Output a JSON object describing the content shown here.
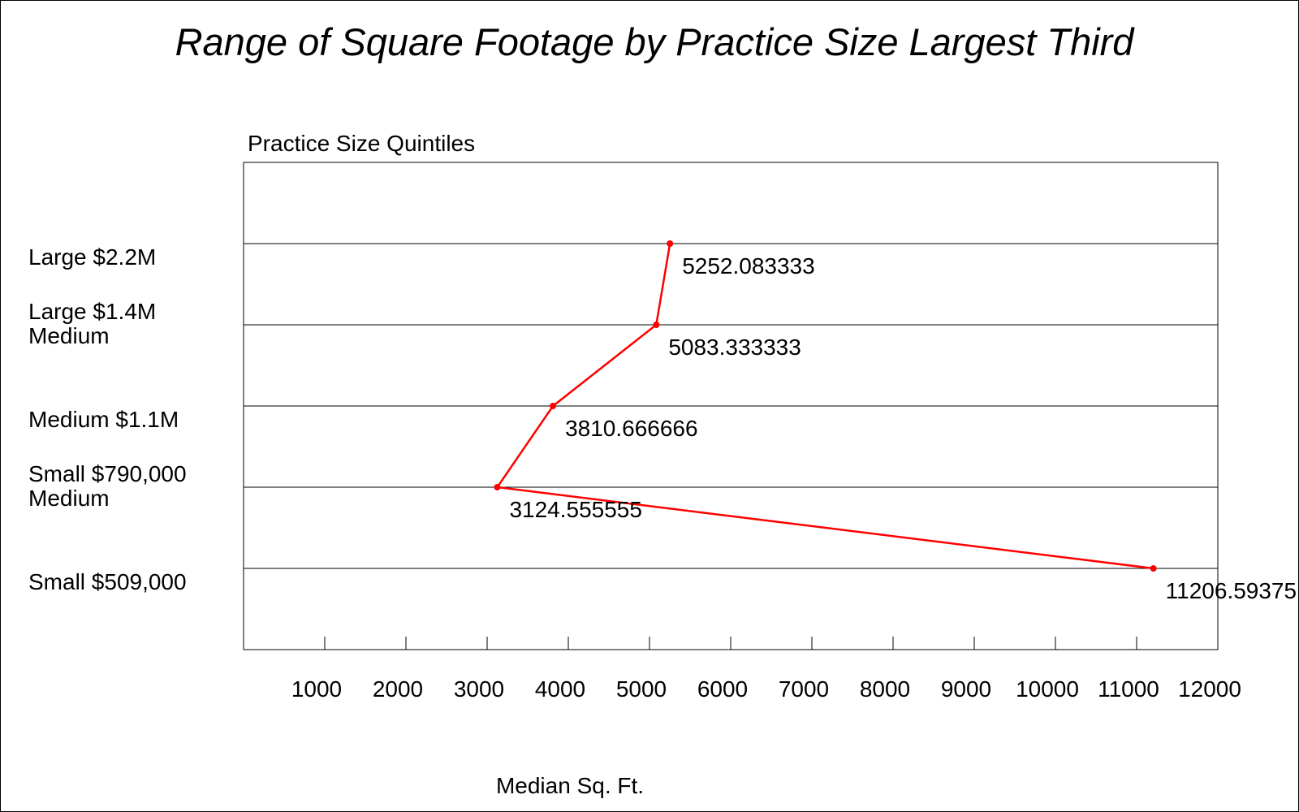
{
  "chart_data": {
    "type": "line",
    "title": "Range of Square Footage by Practice Size Largest Third",
    "ylabel": "Practice Size Quintiles",
    "xlabel": "Median Sq. Ft.",
    "xlim": [
      0,
      12000
    ],
    "xticks": [
      "1000",
      "2000",
      "3000",
      "4000",
      "5000",
      "6000",
      "7000",
      "8000",
      "9000",
      "10000",
      "11000",
      "12000"
    ],
    "categories": [
      [
        "Large $2.2M"
      ],
      [
        "Large $1.4M",
        "Medium"
      ],
      [
        "Medium $1.1M"
      ],
      [
        "Small $790,000",
        "Medium"
      ],
      [
        "Small $509,000"
      ]
    ],
    "series": [
      {
        "values": [
          5252.083333,
          5083.333333,
          3810.666666,
          3124.555555,
          11206.59375
        ],
        "labels": [
          "5252.083333",
          "5083.333333",
          "3810.666666",
          "3124.555555",
          "11206.59375"
        ]
      }
    ],
    "series_color": "#ff0000",
    "grid": "horizontal",
    "legend": "none"
  }
}
